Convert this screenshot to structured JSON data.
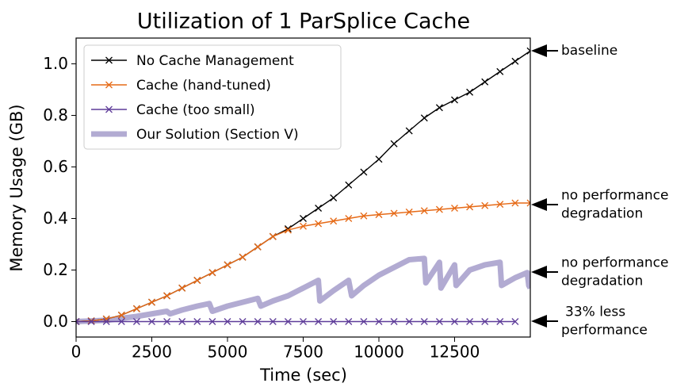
{
  "chart_data": {
    "type": "line",
    "title": "Utilization of 1 ParSplice Cache",
    "xlabel": "Time (sec)",
    "ylabel": "Memory Usage (GB)",
    "xlim": [
      0,
      15000
    ],
    "ylim": [
      -0.06,
      1.1
    ],
    "xticks": [
      0,
      2500,
      5000,
      7500,
      10000,
      12500
    ],
    "yticks": [
      {
        "value": 0,
        "label": "0.0"
      },
      0.2,
      0.4,
      0.6,
      0.8,
      {
        "value": 1,
        "label": "1.0"
      }
    ],
    "legend": "upper left",
    "series": [
      {
        "name": "No Cache Management",
        "color": "#000000",
        "marker": "x",
        "x": [
          0,
          500,
          1000,
          1500,
          2000,
          2500,
          3000,
          3500,
          4000,
          4500,
          5000,
          5500,
          6000,
          6500,
          7000,
          7500,
          8000,
          8500,
          9000,
          9500,
          10000,
          10500,
          11000,
          11500,
          12000,
          12500,
          13000,
          13500,
          14000,
          14500,
          15000
        ],
        "values": [
          0,
          0.003,
          0.01,
          0.025,
          0.05,
          0.075,
          0.1,
          0.13,
          0.16,
          0.19,
          0.22,
          0.25,
          0.29,
          0.33,
          0.36,
          0.4,
          0.44,
          0.48,
          0.53,
          0.58,
          0.63,
          0.69,
          0.74,
          0.79,
          0.83,
          0.86,
          0.89,
          0.93,
          0.97,
          1.01,
          1.05
        ]
      },
      {
        "name": "Cache (hand-tuned)",
        "color": "#e66a17",
        "marker": "x",
        "x": [
          0,
          500,
          1000,
          1500,
          2000,
          2500,
          3000,
          3500,
          4000,
          4500,
          5000,
          5500,
          6000,
          6500,
          7000,
          7500,
          8000,
          8500,
          9000,
          9500,
          10000,
          10500,
          11000,
          11500,
          12000,
          12500,
          13000,
          13500,
          14000,
          14500,
          15000
        ],
        "values": [
          0,
          0.003,
          0.01,
          0.025,
          0.05,
          0.075,
          0.1,
          0.13,
          0.16,
          0.19,
          0.22,
          0.25,
          0.29,
          0.33,
          0.355,
          0.37,
          0.38,
          0.39,
          0.4,
          0.41,
          0.415,
          0.42,
          0.425,
          0.43,
          0.435,
          0.44,
          0.445,
          0.45,
          0.455,
          0.46,
          0.46
        ]
      },
      {
        "name": "Cache (too small)",
        "color": "#5e3c99",
        "marker": "x",
        "x": [
          0,
          500,
          1000,
          1500,
          2000,
          2500,
          3000,
          3500,
          4000,
          4500,
          5000,
          5500,
          6000,
          6500,
          7000,
          7500,
          8000,
          8500,
          9000,
          9500,
          10000,
          10500,
          11000,
          11500,
          12000,
          12500,
          13000,
          13500,
          14000,
          14500
        ],
        "values": [
          0,
          0,
          0,
          0,
          0,
          0,
          0,
          0,
          0,
          0,
          0,
          0,
          0,
          0,
          0,
          0,
          0,
          0,
          0,
          0,
          0,
          0,
          0,
          0,
          0,
          0,
          0,
          0,
          0,
          0
        ]
      },
      {
        "name": "Our Solution (Section V)",
        "color": "#b2abd2",
        "width": 7,
        "x": [
          0,
          1000,
          2000,
          2500,
          3000,
          3100,
          3500,
          4000,
          4400,
          4500,
          5000,
          5500,
          6000,
          6100,
          6500,
          7000,
          7500,
          8000,
          8050,
          8500,
          9000,
          9100,
          9500,
          10000,
          10500,
          11000,
          11500,
          11550,
          12000,
          12050,
          12500,
          12550,
          13000,
          13500,
          14000,
          14050,
          14500,
          14900,
          14950,
          15000
        ],
        "values": [
          0,
          0.005,
          0.02,
          0.03,
          0.04,
          0.03,
          0.045,
          0.06,
          0.07,
          0.04,
          0.06,
          0.075,
          0.09,
          0.06,
          0.08,
          0.1,
          0.13,
          0.16,
          0.08,
          0.12,
          0.16,
          0.1,
          0.14,
          0.18,
          0.21,
          0.24,
          0.245,
          0.15,
          0.23,
          0.13,
          0.22,
          0.14,
          0.2,
          0.22,
          0.23,
          0.14,
          0.17,
          0.19,
          0.14,
          0.13
        ]
      }
    ],
    "annotations": [
      {
        "lines": [
          "baseline"
        ]
      },
      {
        "lines": [
          "no performance",
          "degradation"
        ]
      },
      {
        "lines": [
          "no performance",
          "degradation"
        ]
      },
      {
        "lines": [
          "33% less",
          "performance"
        ]
      }
    ]
  }
}
